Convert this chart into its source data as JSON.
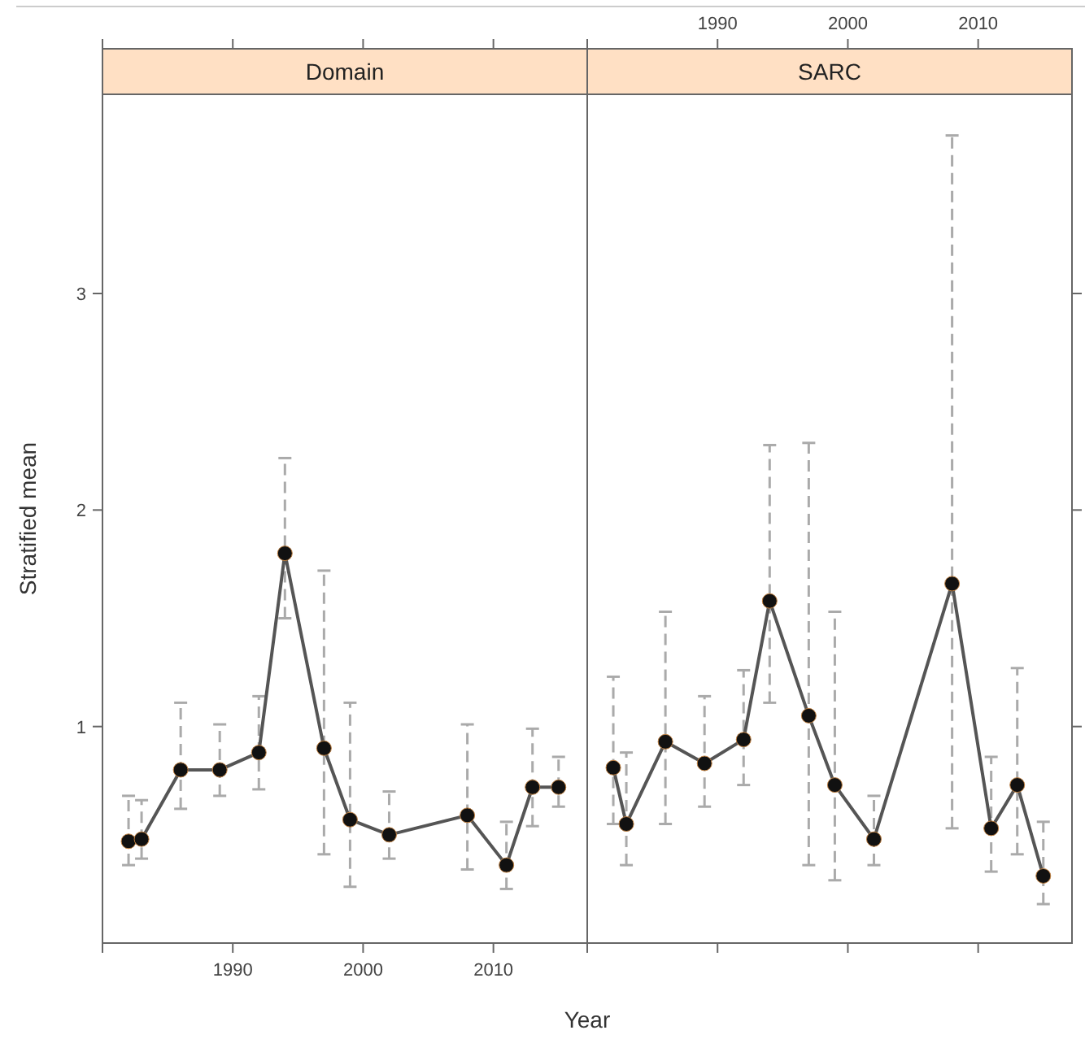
{
  "chart_data": [
    {
      "type": "line",
      "title": "Domain",
      "xlabel": "Year",
      "ylabel": "Stratified mean",
      "marker": "circle",
      "line_style": "solid",
      "x": [
        1982,
        1983,
        1986,
        1989,
        1992,
        1994,
        1997,
        1999,
        2002,
        2008,
        2011,
        2013,
        2015
      ],
      "series": [
        {
          "color": "#555555",
          "values": [
            0.47,
            0.48,
            0.8,
            0.8,
            0.88,
            1.8,
            0.9,
            0.57,
            0.5,
            0.59,
            0.36,
            0.72,
            0.72
          ],
          "errors": [
            [
              0.36,
              0.68
            ],
            [
              0.39,
              0.66
            ],
            [
              0.62,
              1.11
            ],
            [
              0.68,
              1.01
            ],
            [
              0.71,
              1.14
            ],
            [
              1.5,
              2.24
            ],
            [
              0.41,
              1.72
            ],
            [
              0.26,
              1.11
            ],
            [
              0.39,
              0.7
            ],
            [
              0.34,
              1.01
            ],
            [
              0.25,
              0.56
            ],
            [
              0.54,
              0.99
            ],
            [
              0.63,
              0.86
            ]
          ]
        }
      ],
      "xlim": [
        1980,
        2017.2
      ],
      "xticks": [
        {
          "value": 1980,
          "label": null
        },
        1990,
        2000,
        2010
      ],
      "ylim": [
        0,
        3.92
      ],
      "yticks": [
        1,
        2,
        3
      ]
    },
    {
      "type": "line",
      "title": "SARC",
      "marker": "circle",
      "line_style": "solid",
      "tick_labels": "x",
      "x": [
        1982,
        1983,
        1986,
        1989,
        1992,
        1994,
        1997,
        1999,
        2002,
        2008,
        2011,
        2013,
        2015
      ],
      "series": [
        {
          "color": "#555555",
          "values": [
            0.81,
            0.55,
            0.93,
            0.83,
            0.94,
            1.58,
            1.05,
            0.73,
            0.48,
            1.66,
            0.53,
            0.73,
            0.31
          ],
          "errors": [
            [
              0.55,
              1.23
            ],
            [
              0.36,
              0.88
            ],
            [
              0.55,
              1.53
            ],
            [
              0.63,
              1.14
            ],
            [
              0.73,
              1.26
            ],
            [
              1.11,
              2.3
            ],
            [
              0.36,
              2.31
            ],
            [
              0.29,
              1.53
            ],
            [
              0.36,
              0.68
            ],
            [
              0.53,
              3.73
            ],
            [
              0.33,
              0.86
            ],
            [
              0.41,
              1.27
            ],
            [
              0.18,
              0.56
            ]
          ]
        }
      ],
      "xlim": [
        1980,
        2017.2
      ],
      "xticks": [
        {
          "value": 1980,
          "label": null
        },
        1990,
        2000,
        2010
      ],
      "ylim": [
        0,
        3.92
      ],
      "yticks": [
        1,
        2,
        3
      ]
    }
  ]
}
